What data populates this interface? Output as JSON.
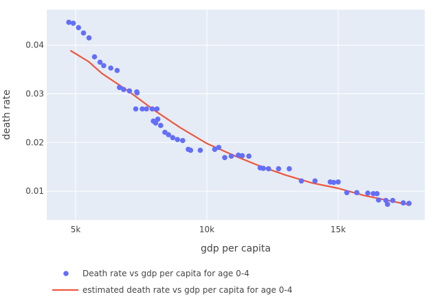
{
  "chart_data": {
    "type": "scatter",
    "xlabel": "gdp per capita",
    "ylabel": "death rate",
    "xlim": [
      3900,
      18300
    ],
    "ylim": [
      0.0041,
      0.0473
    ],
    "grid": true,
    "x_ticks": [
      {
        "value": 5000,
        "label": "5k"
      },
      {
        "value": 10000,
        "label": "10k"
      },
      {
        "value": 15000,
        "label": "15k"
      }
    ],
    "y_ticks": [
      {
        "value": 0.01,
        "label": "0.01"
      },
      {
        "value": 0.02,
        "label": "0.02"
      },
      {
        "value": 0.03,
        "label": "0.03"
      },
      {
        "value": 0.04,
        "label": "0.04"
      }
    ],
    "legend_position": "bottom-left",
    "colors": {
      "points": "#636efa",
      "line": "#ef553b",
      "plot_bg": "#e5ecf6",
      "grid": "#ffffff"
    },
    "series": [
      {
        "name": "Death rate vs gdp per capita for age 0-4",
        "mode": "markers",
        "points": [
          [
            4740,
            0.0447
          ],
          [
            4910,
            0.0445
          ],
          [
            5110,
            0.0436
          ],
          [
            5300,
            0.0425
          ],
          [
            5510,
            0.0415
          ],
          [
            5720,
            0.0376
          ],
          [
            5930,
            0.0365
          ],
          [
            6070,
            0.0358
          ],
          [
            6340,
            0.0353
          ],
          [
            6580,
            0.0348
          ],
          [
            6670,
            0.0313
          ],
          [
            6830,
            0.0309
          ],
          [
            7050,
            0.0306
          ],
          [
            7330,
            0.0304
          ],
          [
            7340,
            0.0302
          ],
          [
            7290,
            0.0269
          ],
          [
            7540,
            0.0269
          ],
          [
            7700,
            0.0269
          ],
          [
            7920,
            0.0269
          ],
          [
            8100,
            0.0269
          ],
          [
            7960,
            0.0244
          ],
          [
            8050,
            0.024
          ],
          [
            8130,
            0.0248
          ],
          [
            8240,
            0.0235
          ],
          [
            8400,
            0.0221
          ],
          [
            8540,
            0.0216
          ],
          [
            8700,
            0.021
          ],
          [
            8880,
            0.0206
          ],
          [
            9080,
            0.0204
          ],
          [
            9290,
            0.0186
          ],
          [
            9380,
            0.0184
          ],
          [
            9750,
            0.0184
          ],
          [
            10300,
            0.0186
          ],
          [
            10450,
            0.019
          ],
          [
            10680,
            0.0169
          ],
          [
            10930,
            0.0172
          ],
          [
            11200,
            0.0174
          ],
          [
            11350,
            0.0173
          ],
          [
            11600,
            0.0172
          ],
          [
            12030,
            0.0148
          ],
          [
            12150,
            0.0147
          ],
          [
            12350,
            0.0146
          ],
          [
            12730,
            0.0146
          ],
          [
            13140,
            0.0146
          ],
          [
            13600,
            0.0121
          ],
          [
            14120,
            0.0121
          ],
          [
            14700,
            0.0119
          ],
          [
            14830,
            0.0118
          ],
          [
            15000,
            0.0119
          ],
          [
            15330,
            0.0097
          ],
          [
            15710,
            0.0097
          ],
          [
            16130,
            0.0096
          ],
          [
            16340,
            0.0095
          ],
          [
            16480,
            0.0095
          ],
          [
            16540,
            0.0082
          ],
          [
            16820,
            0.0081
          ],
          [
            16880,
            0.0073
          ],
          [
            17080,
            0.0081
          ],
          [
            17480,
            0.0076
          ],
          [
            17700,
            0.0075
          ]
        ]
      },
      {
        "name": "estimated death rate vs gdp per capita for age 0-4",
        "mode": "lines",
        "points": [
          [
            4800,
            0.0389
          ],
          [
            5500,
            0.0366
          ],
          [
            6000,
            0.0342
          ],
          [
            7000,
            0.0306
          ],
          [
            8000,
            0.0266
          ],
          [
            9000,
            0.023
          ],
          [
            10000,
            0.0198
          ],
          [
            11000,
            0.0174
          ],
          [
            12000,
            0.0152
          ],
          [
            13000,
            0.0133
          ],
          [
            14000,
            0.0117
          ],
          [
            15000,
            0.0106
          ],
          [
            16000,
            0.0091
          ],
          [
            17000,
            0.008
          ],
          [
            17700,
            0.0072
          ]
        ]
      }
    ]
  }
}
